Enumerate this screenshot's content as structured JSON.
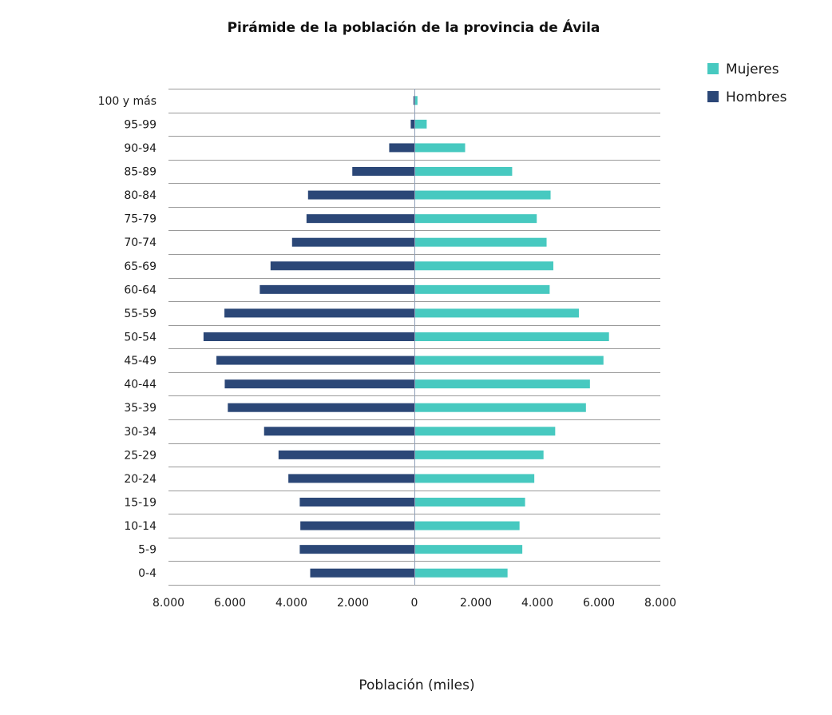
{
  "chart_data": {
    "type": "bar",
    "orientation": "horizontal-pyramid",
    "title": "Pirámide de la población de la provincia de Ávila",
    "xlabel": "Población (miles)",
    "ylabel": "",
    "xlim": [
      -8000,
      8000
    ],
    "x_ticks": [
      -8000,
      -6000,
      -4000,
      -2000,
      0,
      2000,
      4000,
      6000,
      8000
    ],
    "x_tick_labels": [
      "8.000",
      "6.000",
      "4.000",
      "2.000",
      "0",
      "2.000",
      "4.000",
      "6.000",
      "8.000"
    ],
    "grid": true,
    "legend_position": "top-right",
    "categories": [
      "100 y más",
      "95-99",
      "90-94",
      "85-89",
      "80-84",
      "75-79",
      "70-74",
      "65-69",
      "60-64",
      "55-59",
      "50-54",
      "45-49",
      "40-44",
      "35-39",
      "30-34",
      "25-29",
      "20-24",
      "15-19",
      "10-14",
      "5-9",
      "0-4"
    ],
    "series": [
      {
        "name": "Mujeres",
        "color": "#47c9c0",
        "side": "right",
        "values": [
          100,
          400,
          1650,
          3180,
          4430,
          3980,
          4300,
          4520,
          4400,
          5350,
          6330,
          6150,
          5710,
          5580,
          4580,
          4200,
          3900,
          3600,
          3420,
          3510,
          3030
        ]
      },
      {
        "name": "Hombres",
        "color": "#2b4777",
        "side": "left",
        "values": [
          30,
          120,
          820,
          2020,
          3460,
          3510,
          3980,
          4680,
          5030,
          6180,
          6860,
          6440,
          6170,
          6070,
          4890,
          4420,
          4100,
          3730,
          3710,
          3730,
          3390
        ]
      }
    ]
  }
}
